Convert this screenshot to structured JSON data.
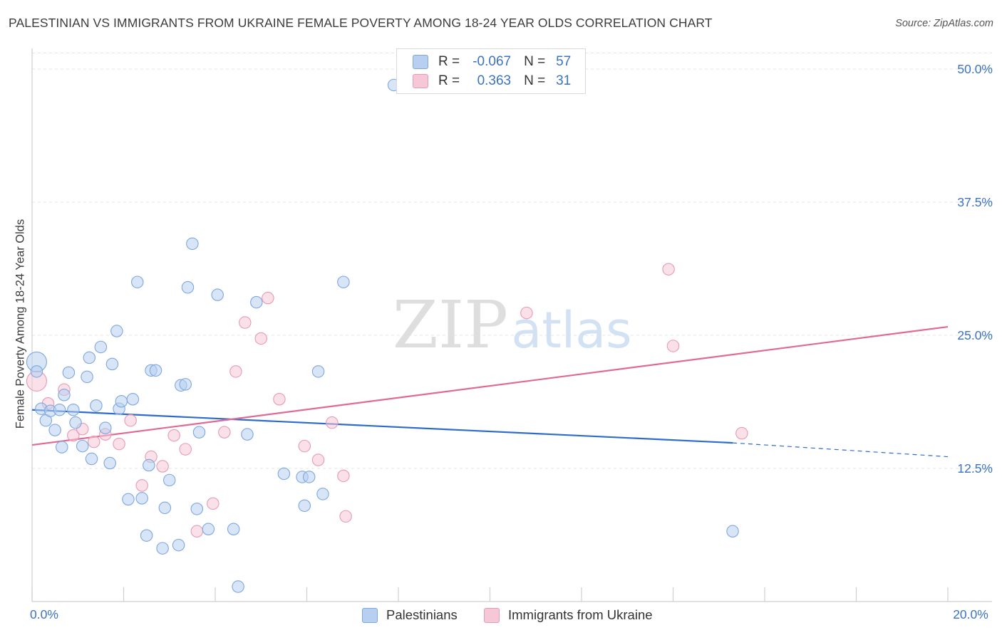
{
  "title": "PALESTINIAN VS IMMIGRANTS FROM UKRAINE FEMALE POVERTY AMONG 18-24 YEAR OLDS CORRELATION CHART",
  "source": "Source: ZipAtlas.com",
  "watermark": {
    "zip": "ZIP",
    "atlas": "atlas"
  },
  "legend": {
    "rows": [
      {
        "r_label": "R =",
        "r_value": "-0.067",
        "n_label": "N =",
        "n_value": "57"
      },
      {
        "r_label": "R =",
        "r_value": "0.363",
        "n_label": "N =",
        "n_value": "31"
      }
    ]
  },
  "bottom_legend": {
    "series1": "Palestinians",
    "series2": "Immigrants from Ukraine"
  },
  "colors": {
    "blue_fill": "#b7cff1",
    "blue_stroke": "#7ea6df",
    "blue_line": "#2d6ccc",
    "pink_fill": "#f6c7d6",
    "pink_stroke": "#e79ab4",
    "pink_line": "#e06a95",
    "axis_text": "#3b72c4"
  },
  "chart_data": {
    "type": "scatter",
    "title": "PALESTINIAN VS IMMIGRANTS FROM UKRAINE FEMALE POVERTY AMONG 18-24 YEAR OLDS CORRELATION CHART",
    "xlabel": "",
    "ylabel": "Female Poverty Among 18-24 Year Olds",
    "xlim": [
      0,
      20
    ],
    "ylim": [
      0,
      51.5
    ],
    "x_tick_labels": [
      {
        "value": 0,
        "label": "0.0%"
      },
      {
        "value": 20,
        "label": "20.0%"
      }
    ],
    "y_ticks": [
      {
        "value": 12.5,
        "label": "12.5%"
      },
      {
        "value": 25.0,
        "label": "25.0%"
      },
      {
        "value": 37.5,
        "label": "37.5%"
      },
      {
        "value": 50.0,
        "label": "50.0%"
      }
    ],
    "x_minor_ticks": [
      0,
      2,
      4,
      6,
      8,
      10,
      12,
      14,
      16,
      18,
      20
    ],
    "grid": true,
    "series": [
      {
        "name": "Palestinians",
        "color": "#b7cff1",
        "r": -0.067,
        "n": 57,
        "points": [
          [
            0.1,
            22.5
          ],
          [
            0.1,
            21.6
          ],
          [
            0.2,
            18.1
          ],
          [
            0.3,
            17.0
          ],
          [
            0.4,
            17.9
          ],
          [
            0.5,
            16.1
          ],
          [
            0.6,
            18.0
          ],
          [
            0.65,
            14.5
          ],
          [
            0.7,
            19.4
          ],
          [
            0.8,
            21.5
          ],
          [
            0.9,
            18.0
          ],
          [
            0.95,
            16.8
          ],
          [
            1.1,
            14.6
          ],
          [
            1.2,
            21.1
          ],
          [
            1.25,
            22.9
          ],
          [
            1.3,
            13.4
          ],
          [
            1.4,
            18.4
          ],
          [
            1.5,
            23.9
          ],
          [
            1.6,
            16.3
          ],
          [
            1.7,
            13.0
          ],
          [
            1.75,
            22.3
          ],
          [
            1.85,
            25.4
          ],
          [
            1.9,
            18.1
          ],
          [
            1.95,
            18.8
          ],
          [
            2.1,
            9.6
          ],
          [
            2.2,
            19.0
          ],
          [
            2.3,
            30.0
          ],
          [
            2.4,
            9.7
          ],
          [
            2.5,
            6.2
          ],
          [
            2.55,
            12.8
          ],
          [
            2.6,
            21.7
          ],
          [
            2.7,
            21.7
          ],
          [
            2.85,
            5.0
          ],
          [
            2.9,
            8.8
          ],
          [
            3.0,
            11.4
          ],
          [
            3.2,
            5.3
          ],
          [
            3.25,
            20.3
          ],
          [
            3.35,
            20.4
          ],
          [
            3.4,
            29.5
          ],
          [
            3.5,
            33.6
          ],
          [
            3.6,
            8.7
          ],
          [
            3.65,
            15.9
          ],
          [
            3.85,
            6.8
          ],
          [
            4.05,
            28.8
          ],
          [
            4.4,
            6.8
          ],
          [
            4.5,
            1.4
          ],
          [
            4.7,
            15.7
          ],
          [
            4.9,
            28.1
          ],
          [
            5.5,
            12.0
          ],
          [
            5.9,
            11.7
          ],
          [
            5.95,
            9.0
          ],
          [
            6.05,
            11.7
          ],
          [
            6.25,
            21.6
          ],
          [
            6.35,
            10.1
          ],
          [
            6.8,
            30.0
          ],
          [
            7.9,
            48.5
          ],
          [
            15.3,
            6.6
          ]
        ],
        "trend": {
          "x": [
            0,
            15.3
          ],
          "y": [
            18.0,
            14.9
          ]
        },
        "trend_extension": {
          "x": [
            15.3,
            20
          ],
          "y": [
            14.9,
            13.6
          ]
        }
      },
      {
        "name": "Immigrants from Ukraine",
        "color": "#f6c7d6",
        "r": 0.363,
        "n": 31,
        "points": [
          [
            0.1,
            20.7
          ],
          [
            0.35,
            18.6
          ],
          [
            0.7,
            19.9
          ],
          [
            0.9,
            15.6
          ],
          [
            1.1,
            16.2
          ],
          [
            1.35,
            15.0
          ],
          [
            1.6,
            15.7
          ],
          [
            1.9,
            14.8
          ],
          [
            2.15,
            17.0
          ],
          [
            2.4,
            10.9
          ],
          [
            2.6,
            13.6
          ],
          [
            2.85,
            12.7
          ],
          [
            3.1,
            15.6
          ],
          [
            3.35,
            14.3
          ],
          [
            3.6,
            6.6
          ],
          [
            3.95,
            9.2
          ],
          [
            4.2,
            15.9
          ],
          [
            4.45,
            21.6
          ],
          [
            4.65,
            26.2
          ],
          [
            5.0,
            24.7
          ],
          [
            5.15,
            28.5
          ],
          [
            5.4,
            19.0
          ],
          [
            5.95,
            14.6
          ],
          [
            6.25,
            13.3
          ],
          [
            6.55,
            16.8
          ],
          [
            6.8,
            11.8
          ],
          [
            6.85,
            8.0
          ],
          [
            10.8,
            27.1
          ],
          [
            13.9,
            31.2
          ],
          [
            14.0,
            24.0
          ],
          [
            15.5,
            15.8
          ]
        ],
        "trend": {
          "x": [
            0,
            20
          ],
          "y": [
            14.7,
            25.8
          ]
        }
      }
    ],
    "bubble_size_note": "first point of each series drawn larger"
  }
}
